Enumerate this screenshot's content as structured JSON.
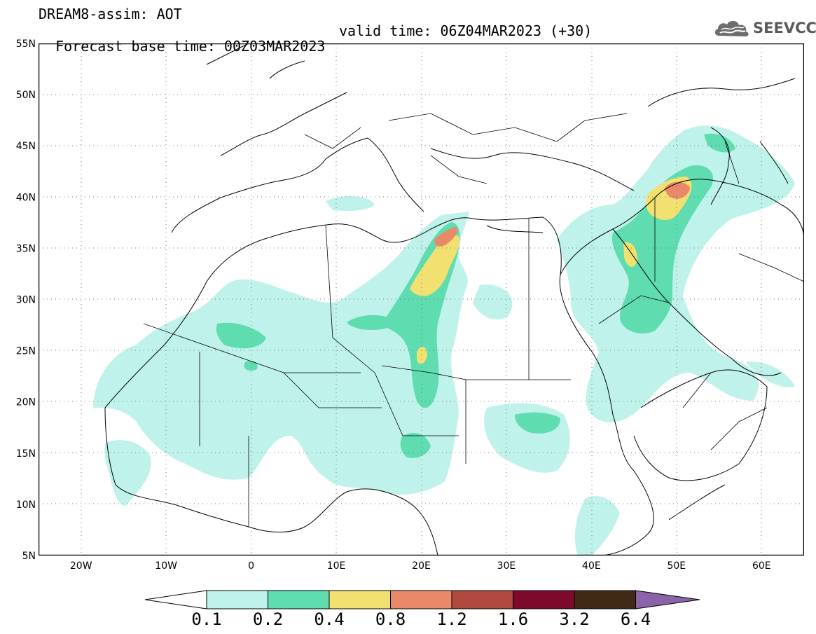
{
  "header": {
    "title_line1": "DREAM8-assim: AOT",
    "base_time": "Forecast base time: 00Z03MAR2023",
    "valid_time": "valid time: 06Z04MAR2023 (+30)"
  },
  "logo": {
    "text": "SEEVCCC",
    "icon": "cloud-logo-icon"
  },
  "map": {
    "lon_labels": [
      "20W",
      "10W",
      "0",
      "10E",
      "20E",
      "30E",
      "40E",
      "50E",
      "60E"
    ],
    "lat_labels": [
      "55N",
      "50N",
      "45N",
      "40N",
      "35N",
      "30N",
      "25N",
      "20N",
      "15N",
      "10N",
      "5N"
    ],
    "lon_range": [
      -25,
      65
    ],
    "lat_range": [
      5,
      55
    ],
    "grid": "dotted"
  },
  "legend": {
    "labels": [
      "0.1",
      "0.2",
      "0.4",
      "0.8",
      "1.2",
      "1.6",
      "3.2",
      "6.4"
    ],
    "colors": [
      "#ffffff",
      "#bff2ea",
      "#5fdcb0",
      "#f2e170",
      "#e9896a",
      "#b04a3e",
      "#7d0a2a",
      "#3f2a16",
      "#8a63a8"
    ]
  }
}
